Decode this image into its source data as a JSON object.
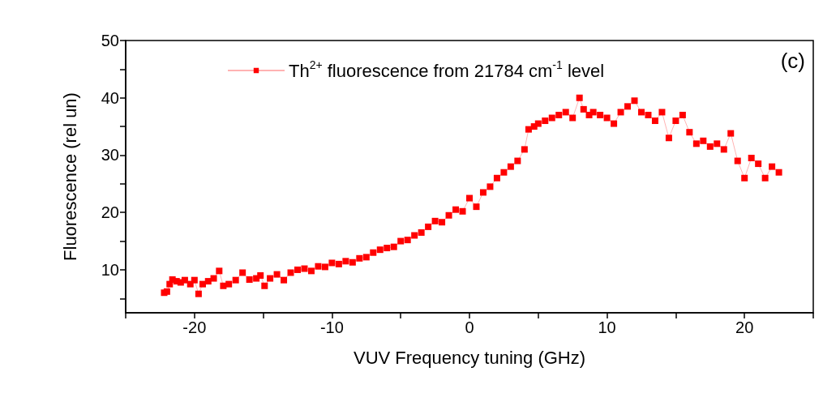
{
  "chart_data": {
    "type": "line",
    "xlabel": "VUV Frequency tuning (GHz)",
    "ylabel": "Fluorescence (rel un)",
    "annotations": [
      "(c)"
    ],
    "xlim": [
      -25,
      25
    ],
    "xticks": [
      {
        "value": -25,
        "label": null
      },
      -20,
      {
        "value": -15,
        "label": null
      },
      -10,
      {
        "value": -5,
        "label": null
      },
      0,
      {
        "value": 5,
        "label": null
      },
      10,
      {
        "value": 15,
        "label": null
      },
      20,
      {
        "value": 25,
        "label": null
      }
    ],
    "ylim": [
      2.5,
      50
    ],
    "yticks": [
      {
        "value": 5,
        "label": null
      },
      10,
      {
        "value": 15,
        "label": null
      },
      20,
      {
        "value": 25,
        "label": null
      },
      30,
      {
        "value": 35,
        "label": null
      },
      40,
      {
        "value": 45,
        "label": null
      },
      50
    ],
    "grid": false,
    "legend": "top",
    "marker": "square",
    "line_style": "solid",
    "series": [
      {
        "name": "Th$^{2+}$ fluorescence from 21784 cm$^{-1}$ level",
        "color": "#ff0000",
        "x": [
          -22.2,
          -22,
          -21.8,
          -21.6,
          -21.3,
          -21,
          -20.7,
          -20.3,
          -20,
          -19.7,
          -19.4,
          -19,
          -18.6,
          -18.2,
          -17.9,
          -17.5,
          -17,
          -16.5,
          -16,
          -15.5,
          -15.2,
          -14.9,
          -14.5,
          -14,
          -13.5,
          -13,
          -12.5,
          -12,
          -11.5,
          -11,
          -10.5,
          -10,
          -9.5,
          -9,
          -8.5,
          -8,
          -7.5,
          -7,
          -6.5,
          -6,
          -5.5,
          -5,
          -4.5,
          -4,
          -3.5,
          -3,
          -2.5,
          -2,
          -1.5,
          -1,
          -0.5,
          0,
          0.5,
          1,
          1.5,
          2,
          2.5,
          3,
          3.5,
          4,
          4.3,
          4.7,
          5,
          5.5,
          6,
          6.5,
          7,
          7.5,
          8,
          8.3,
          8.7,
          9,
          9.5,
          10,
          10.5,
          11,
          11.5,
          12,
          12.5,
          13,
          13.5,
          14,
          14.5,
          15,
          15.5,
          16,
          16.5,
          17,
          17.5,
          18,
          18.5,
          19,
          19.5,
          20,
          20.5,
          21,
          21.5,
          22,
          22.5
        ],
        "values": [
          6,
          6.2,
          7.5,
          8.3,
          8,
          7.8,
          8.2,
          7.5,
          8.2,
          5.8,
          7.5,
          8,
          8.5,
          9.8,
          7.2,
          7.5,
          8.2,
          9.5,
          8.3,
          8.5,
          9,
          7.2,
          8.5,
          9.2,
          8.2,
          9.5,
          10,
          10.2,
          9.8,
          10.6,
          10.5,
          11.2,
          11,
          11.5,
          11.3,
          12,
          12.2,
          13,
          13.5,
          13.8,
          14,
          15,
          15.2,
          16,
          16.5,
          17.5,
          18.5,
          18.3,
          19.5,
          20.5,
          20.2,
          22.5,
          21,
          23.5,
          24.5,
          26,
          27,
          28,
          29,
          31,
          34.5,
          35,
          35.5,
          36,
          36.5,
          37,
          37.5,
          36.5,
          40,
          38,
          37,
          37.5,
          37,
          36.5,
          35.5,
          37.5,
          38.5,
          39.5,
          37.5,
          37,
          36,
          37.5,
          33,
          36,
          37,
          34,
          32,
          32.5,
          31.5,
          32,
          31,
          33.8,
          29,
          26,
          29.5,
          28.5,
          26,
          28,
          27
        ]
      }
    ]
  }
}
